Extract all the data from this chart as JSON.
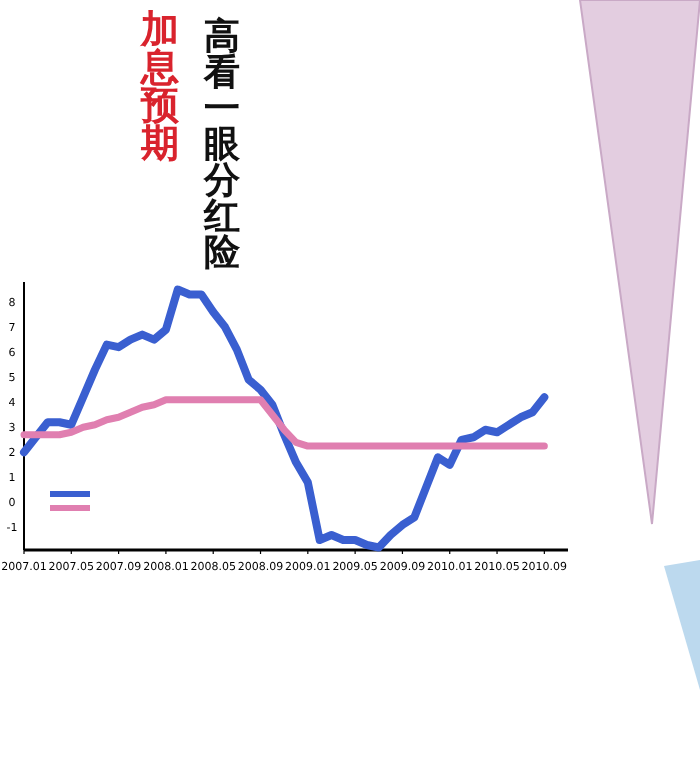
{
  "chart_data": {
    "type": "line",
    "title": "高看一眼分红险",
    "subtitle": "加息预期",
    "categories": [
      "2007.01",
      null,
      null,
      null,
      "2007.05",
      null,
      null,
      null,
      "2007.09",
      null,
      null,
      null,
      "2008.01",
      null,
      null,
      null,
      "2008.05",
      null,
      null,
      null,
      "2008.09",
      null,
      null,
      null,
      "2009.01",
      null,
      null,
      null,
      "2009.05",
      null,
      null,
      null,
      "2009.09",
      null,
      null,
      null,
      "2010.01",
      null,
      null,
      null,
      "2010.05",
      null,
      null,
      null,
      "2010.09"
    ],
    "series": [
      {
        "color": "#3a5fd0",
        "values": [
          2.0,
          2.6,
          3.2,
          3.2,
          3.1,
          4.2,
          5.3,
          6.3,
          6.2,
          6.5,
          6.7,
          6.5,
          6.9,
          8.5,
          8.3,
          8.3,
          7.6,
          7.0,
          6.1,
          4.9,
          4.5,
          3.9,
          2.7,
          1.6,
          0.8,
          -1.5,
          -1.3,
          -1.5,
          -1.5,
          -1.7,
          -1.8,
          -1.3,
          -0.9,
          -0.6,
          0.6,
          1.8,
          1.5,
          2.5,
          2.6,
          2.9,
          2.8,
          3.1,
          3.4,
          3.6,
          4.2
        ]
      },
      {
        "color": "#e07fb0",
        "values": [
          2.7,
          2.7,
          2.7,
          2.7,
          2.8,
          3.0,
          3.1,
          3.3,
          3.4,
          3.6,
          3.8,
          3.9,
          4.1,
          4.1,
          4.1,
          4.1,
          4.1,
          4.1,
          4.1,
          4.1,
          4.1,
          3.5,
          2.9,
          2.4,
          2.25,
          2.25,
          2.25,
          2.25,
          2.25,
          2.25,
          2.25,
          2.25,
          2.25,
          2.25,
          2.25,
          2.25,
          2.25,
          2.25,
          2.25,
          2.25,
          2.25,
          2.25,
          2.25,
          2.25,
          2.25
        ]
      }
    ],
    "ylim": [
      -1.9,
      8.8
    ],
    "yticks": [
      -1,
      0,
      1,
      2,
      3,
      4,
      5,
      6,
      7,
      8
    ],
    "grid": false,
    "line_style": "solid",
    "marker": "none"
  }
}
